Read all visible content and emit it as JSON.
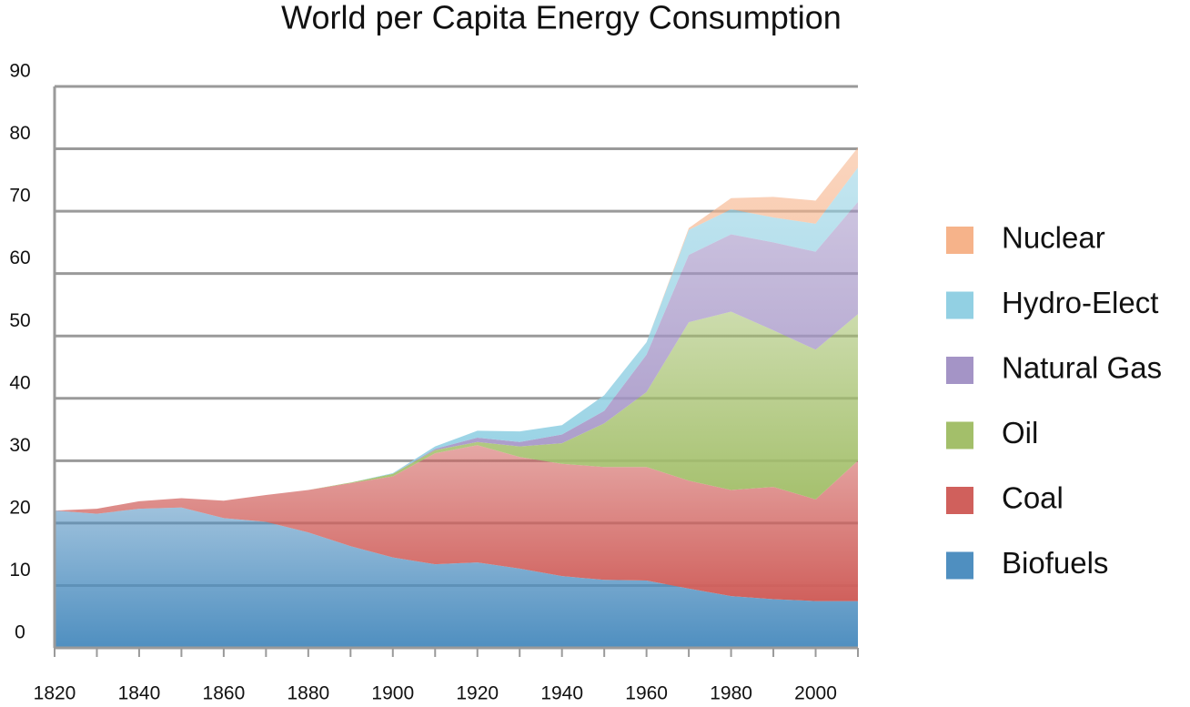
{
  "chart_data": {
    "type": "stacked-area",
    "title": "World per Capita Energy Consumption",
    "x": [
      1820,
      1830,
      1840,
      1850,
      1860,
      1870,
      1880,
      1890,
      1900,
      1910,
      1920,
      1930,
      1940,
      1950,
      1960,
      1970,
      1980,
      1990,
      2000,
      2010
    ],
    "xlim": [
      1820,
      2010
    ],
    "xticks": [
      1820,
      1840,
      1860,
      1880,
      1900,
      1920,
      1940,
      1960,
      1980,
      2000
    ],
    "ylim": [
      0,
      90
    ],
    "yticks": [
      0,
      10,
      20,
      30,
      40,
      50,
      60,
      70,
      80,
      90
    ],
    "grid": true,
    "legend": "right",
    "series": [
      {
        "name": "Biofuels",
        "color": "#4f8fc0",
        "values": [
          22,
          21.5,
          22.3,
          22.5,
          20.8,
          20.2,
          18.5,
          16.3,
          14.5,
          13.4,
          13.7,
          12.7,
          11.5,
          10.9,
          10.8,
          9.5,
          8.3,
          7.8,
          7.5,
          7.5
        ]
      },
      {
        "name": "Coal",
        "color": "#d0605c",
        "values": [
          0,
          0.8,
          1.2,
          1.5,
          2.8,
          4.3,
          6.8,
          10.1,
          13,
          17.8,
          18.8,
          17.9,
          18,
          18.1,
          18.2,
          17.3,
          17,
          18,
          16.3,
          22.5
        ]
      },
      {
        "name": "Oil",
        "color": "#a3bf6a",
        "values": [
          0,
          0,
          0,
          0,
          0,
          0,
          0,
          0.1,
          0.4,
          0.5,
          0.5,
          1.7,
          3.3,
          7,
          12,
          25.4,
          28.6,
          25.1,
          24,
          23.5
        ]
      },
      {
        "name": "Natural Gas",
        "color": "#a494c6",
        "values": [
          0,
          0,
          0,
          0,
          0,
          0,
          0,
          0,
          0,
          0.2,
          0.7,
          0.7,
          1.4,
          2,
          6,
          10.8,
          12.4,
          14.1,
          15.7,
          18
        ]
      },
      {
        "name": "Hydro-Elect",
        "color": "#92d0e3",
        "values": [
          0,
          0,
          0,
          0,
          0,
          0,
          0,
          0,
          0.1,
          0.4,
          1.1,
          1.7,
          1.5,
          2.5,
          2,
          4,
          4,
          4,
          4.5,
          5.5
        ]
      },
      {
        "name": "Nuclear",
        "color": "#f6b38a",
        "values": [
          0,
          0,
          0,
          0,
          0,
          0,
          0,
          0,
          0,
          0,
          0,
          0,
          0,
          0,
          0,
          0.3,
          1.8,
          3.3,
          3.7,
          3.2
        ]
      }
    ]
  }
}
